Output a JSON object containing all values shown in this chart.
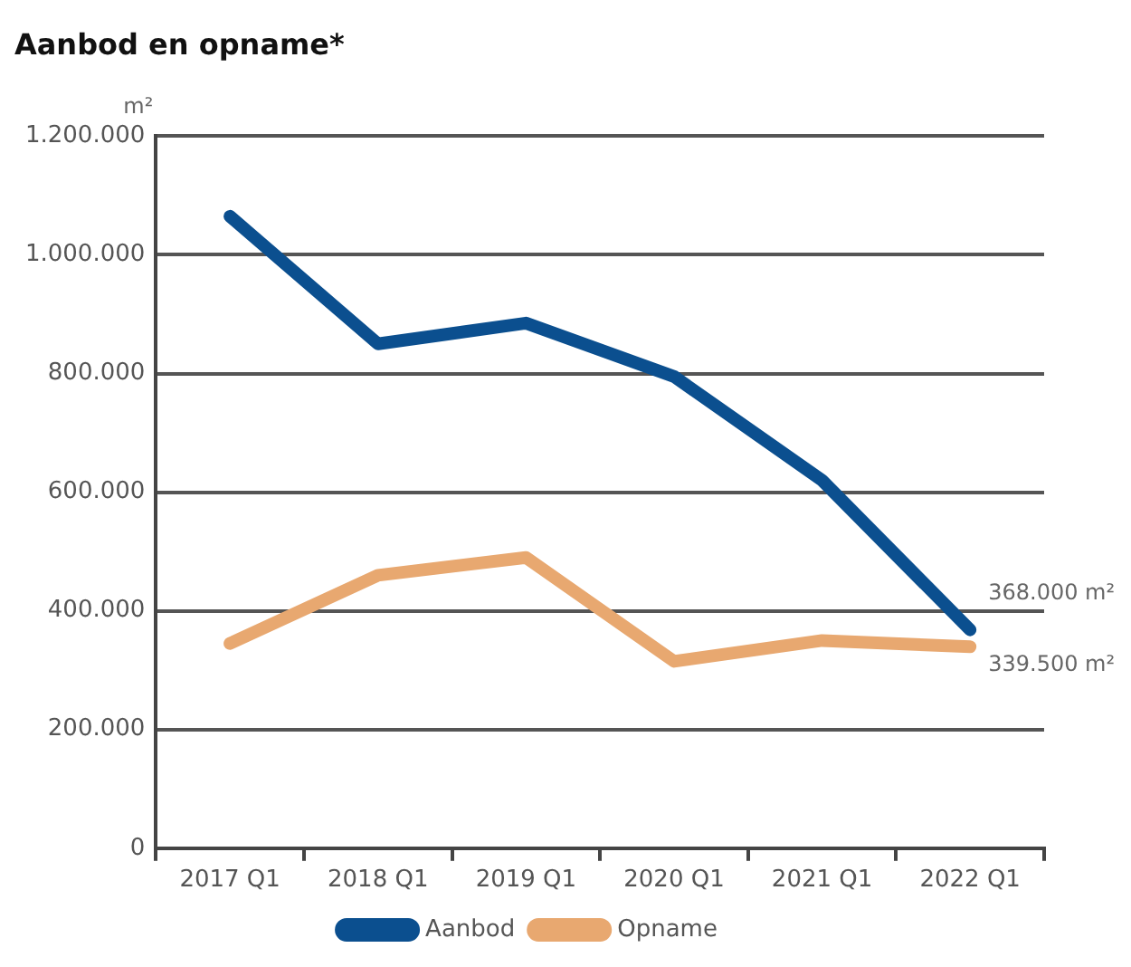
{
  "chart_data": {
    "type": "line",
    "title": "Aanbod en opname*",
    "ylabel": "m²",
    "categories": [
      "2017 Q1",
      "2018 Q1",
      "2019 Q1",
      "2020 Q1",
      "2021 Q1",
      "2022 Q1"
    ],
    "series": [
      {
        "name": "Aanbod",
        "color": "#0b4f8f",
        "values": [
          1065000,
          850000,
          885000,
          795000,
          620000,
          368000
        ]
      },
      {
        "name": "Opname",
        "color": "#e8a870",
        "values": [
          345000,
          460000,
          490000,
          315000,
          350000,
          339500
        ]
      }
    ],
    "ylim": [
      0,
      1200000
    ],
    "yticks": [
      {
        "value": 0,
        "label": "0"
      },
      {
        "value": 200000,
        "label": "200.000"
      },
      {
        "value": 400000,
        "label": "400.000"
      },
      {
        "value": 600000,
        "label": "600.000"
      },
      {
        "value": 800000,
        "label": "800.000"
      },
      {
        "value": 1000000,
        "label": "1.000.000"
      },
      {
        "value": 1200000,
        "label": "1.200.000"
      }
    ],
    "annotations": [
      {
        "text": "368.000 m²",
        "x": "2022 Q1",
        "y": 368000
      },
      {
        "text": "339.500 m²",
        "x": "2022 Q1",
        "y": 339500
      }
    ],
    "grid": "y",
    "legend": "bottom",
    "marker": "none",
    "line_style": "solid"
  }
}
